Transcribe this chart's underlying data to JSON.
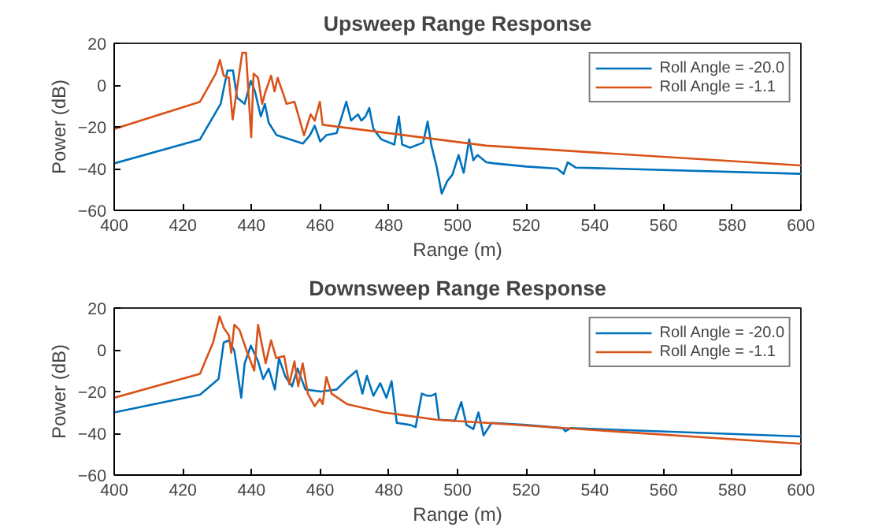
{
  "chart_data": [
    {
      "type": "line",
      "title": "Upsweep Range Response",
      "xlabel": "Range (m)",
      "ylabel": "Power (dB)",
      "xlim": [
        400,
        600
      ],
      "ylim": [
        -60,
        20
      ],
      "xticks": [
        400,
        420,
        440,
        460,
        480,
        500,
        520,
        540,
        560,
        580,
        600
      ],
      "yticks": [
        -60,
        -40,
        -20,
        0,
        20
      ],
      "grid": false,
      "legend": "top right",
      "line_style": "solid",
      "marker": "none",
      "series": [
        {
          "name": "Roll Angle = -20.0",
          "color": "#0072bd",
          "x": [
            400,
            425,
            431,
            433,
            434.6,
            435.8,
            438,
            439.8,
            441,
            442.7,
            443.9,
            445,
            447.3,
            455,
            457,
            458.4,
            460,
            461.8,
            464.8,
            467.6,
            469,
            471,
            472,
            473.2,
            474.3,
            475.5,
            477.8,
            481.6,
            482.9,
            483.9,
            486.2,
            490,
            491.3,
            492.4,
            493.9,
            495.4,
            497,
            498.5,
            500.3,
            501.8,
            503.4,
            504.6,
            505.8,
            508.4,
            510.7,
            520,
            529,
            530.9,
            532.1,
            534.4,
            600
          ],
          "values": [
            -37.5,
            -26,
            -9,
            7,
            7,
            -6,
            -9,
            2,
            -3,
            -15,
            -9,
            -18,
            -24,
            -28,
            -24,
            -19.5,
            -27,
            -24,
            -23,
            -8,
            -17,
            -14,
            -17,
            -15,
            -11,
            -21,
            -26,
            -28.5,
            -15,
            -28.5,
            -30,
            -27.5,
            -17.5,
            -29,
            -39,
            -52,
            -46,
            -43,
            -33.5,
            -42,
            -26,
            -36,
            -33.5,
            -37,
            -37.5,
            -39,
            -40,
            -42.5,
            -37,
            -39.5,
            -42.5
          ]
        },
        {
          "name": "Roll Angle = -1.1",
          "color": "#d95319",
          "x": [
            400,
            425,
            429.6,
            430.8,
            431.9,
            433.4,
            434.5,
            435.8,
            437.3,
            438.4,
            439.9,
            440.6,
            441.9,
            443.1,
            444.1,
            445.7,
            446.7,
            447.6,
            449.2,
            450.2,
            452.5,
            455.3,
            457.2,
            458.4,
            459.9,
            460.7,
            508.4,
            600
          ],
          "values": [
            -21,
            -8,
            5.5,
            12,
            4.5,
            3.5,
            -16.5,
            -1.5,
            15.5,
            15.5,
            -25,
            5.5,
            3.5,
            -9,
            -3,
            4.5,
            -3,
            3.5,
            -4,
            -9,
            -8,
            -24,
            -14,
            -17,
            -8,
            -19,
            -29,
            -38.5
          ]
        }
      ]
    },
    {
      "type": "line",
      "title": "Downsweep Range Response",
      "xlabel": "Range (m)",
      "ylabel": "Power (dB)",
      "xlim": [
        400,
        600
      ],
      "ylim": [
        -60,
        20
      ],
      "xticks": [
        400,
        420,
        440,
        460,
        480,
        500,
        520,
        540,
        560,
        580,
        600
      ],
      "yticks": [
        -60,
        -40,
        -20,
        0,
        20
      ],
      "grid": false,
      "legend": "top right",
      "line_style": "solid",
      "marker": "none",
      "series": [
        {
          "name": "Roll Angle = -20.0",
          "color": "#0072bd",
          "x": [
            400,
            425,
            430.4,
            431.9,
            433.4,
            435,
            437,
            438,
            439.8,
            441.9,
            443.4,
            445,
            446.8,
            448,
            449.9,
            451.8,
            453.4,
            455.7,
            460.2,
            464.8,
            467.8,
            470.6,
            472.3,
            473.6,
            475.5,
            477.5,
            479.3,
            480.8,
            482.3,
            486.2,
            487.8,
            489.6,
            491.1,
            492.4,
            493.6,
            494.6,
            499.2,
            501.1,
            502.6,
            504.6,
            506.1,
            507.6,
            509.9,
            520,
            530.6,
            531.4,
            532.9,
            600
          ],
          "values": [
            -30,
            -21.5,
            -14,
            3.5,
            4.5,
            -0.5,
            -23,
            -6.5,
            2,
            -5.5,
            -14,
            -9,
            -19,
            -4,
            -13,
            -17.5,
            -9,
            -19,
            -20,
            -19,
            -14,
            -10,
            -21,
            -12.5,
            -22,
            -16,
            -23,
            -15,
            -35,
            -36,
            -37,
            -21,
            -22,
            -22,
            -21,
            -33.5,
            -34,
            -25,
            -36,
            -38,
            -30,
            -41,
            -35,
            -36,
            -37.5,
            -39,
            -37.5,
            -41.5
          ]
        },
        {
          "name": "Roll Angle = -1.1",
          "color": "#d95319",
          "x": [
            400,
            425,
            428.8,
            430.7,
            431.9,
            433.4,
            434.1,
            435,
            436.5,
            438.8,
            440.8,
            441.9,
            444.1,
            445.7,
            447.2,
            449.5,
            451,
            452.5,
            453.6,
            454.9,
            456.4,
            458.4,
            459.9,
            460.7,
            461.8,
            463.3,
            467.8,
            478.5,
            493.9,
            508.4,
            600
          ],
          "values": [
            -23,
            -11.5,
            3.5,
            16,
            10.5,
            7,
            -1.5,
            12,
            9.5,
            -1.5,
            -10,
            12,
            -6.5,
            4.5,
            -4,
            -3,
            -16.5,
            -5.5,
            -17.5,
            -6.5,
            -21,
            -27,
            -23.5,
            -26,
            -13,
            -21,
            -26,
            -30,
            -33.5,
            -35,
            -45
          ]
        }
      ]
    }
  ]
}
